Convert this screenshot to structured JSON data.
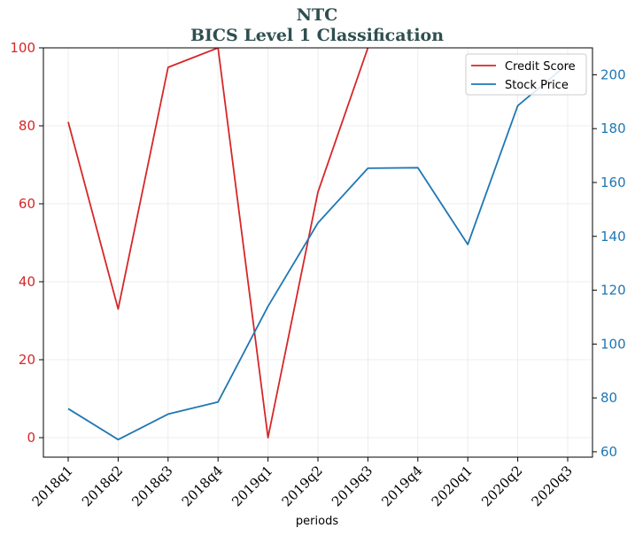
{
  "chart_data": {
    "type": "line",
    "title": "NTC",
    "subtitle": "BICS Level 1 Classification",
    "xlabel": "periods",
    "categories": [
      "2018q1",
      "2018q2",
      "2018q3",
      "2018q4",
      "2019q1",
      "2019q2",
      "2019q3",
      "2019q4",
      "2020q1",
      "2020q2",
      "2020q3"
    ],
    "series": [
      {
        "name": "Credit Score",
        "axis": "left",
        "color": "#d62728",
        "values": [
          81,
          33,
          95,
          100,
          0,
          63,
          100,
          null,
          null,
          null,
          null
        ]
      },
      {
        "name": "Stock Price",
        "axis": "right",
        "color": "#1f77b4",
        "values": [
          76,
          64.5,
          74,
          78.5,
          114,
          145,
          165.3,
          165.5,
          137,
          188.5,
          204
        ]
      }
    ],
    "y_left": {
      "ylim": [
        -5,
        100
      ],
      "ticks": [
        0,
        20,
        40,
        60,
        80,
        100
      ],
      "color": "#d62728"
    },
    "y_right": {
      "ylim": [
        58,
        210
      ],
      "ticks": [
        60,
        80,
        100,
        120,
        140,
        160,
        180,
        200
      ],
      "color": "#1f77b4"
    },
    "grid": true,
    "legend_position": "top-right"
  }
}
